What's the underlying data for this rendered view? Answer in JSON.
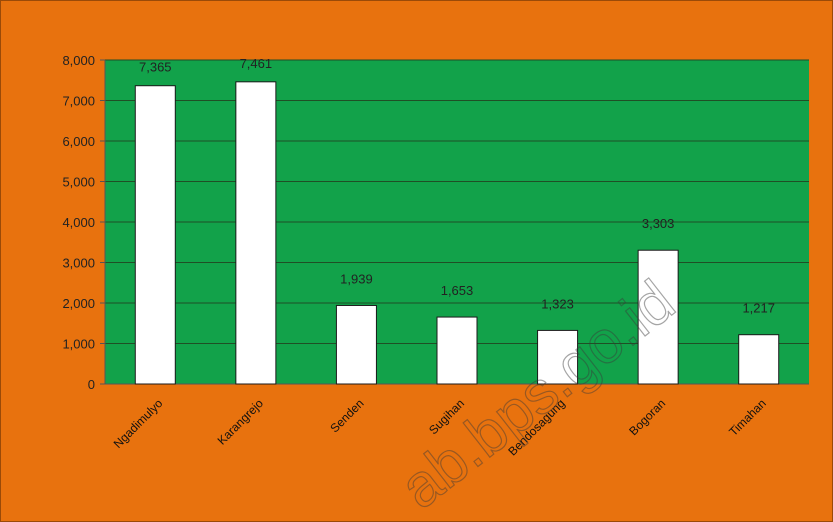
{
  "colors": {
    "background": "#E8720E",
    "plot_area": "#12A24A",
    "bar_fill": "#FFFFFF",
    "bar_stroke": "#1A1A1A",
    "gridline": "#1F4F25"
  },
  "watermark": "ab.bps.go.id",
  "chart_data": {
    "type": "bar",
    "categories": [
      "Ngadimulyo",
      "Karangrejo",
      "Senden",
      "Sugihan",
      "Bendosagung",
      "Bogoran",
      "Timahan"
    ],
    "values": [
      7365,
      7461,
      1939,
      1653,
      1323,
      3303,
      1217
    ],
    "data_labels": [
      "7,365",
      "7,461",
      "1,939",
      "1,653",
      "1,323",
      "3,303",
      "1,217"
    ],
    "yticks": [
      0,
      1000,
      2000,
      3000,
      4000,
      5000,
      6000,
      7000,
      8000
    ],
    "ytick_labels": [
      "0",
      "1,000",
      "2,000",
      "3,000",
      "4,000",
      "5,000",
      "6,000",
      "7,000",
      "8,000"
    ],
    "ylim": [
      0,
      8000
    ],
    "grid": true,
    "legend": "none"
  }
}
